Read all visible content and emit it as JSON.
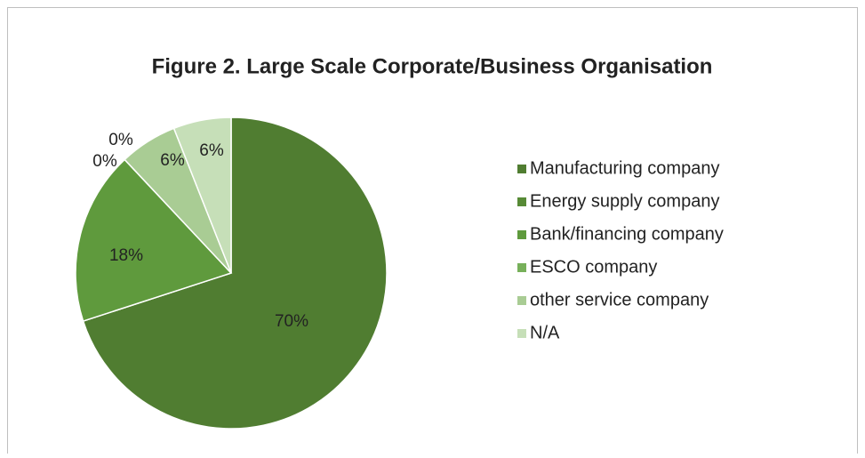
{
  "chart_data": {
    "type": "pie",
    "title": "Figure 2. Large Scale Corporate/Business Organisation",
    "categories": [
      "Manufacturing  company",
      "Energy supply company",
      "Bank/financing company",
      "ESCO company",
      "other service company",
      " N/A"
    ],
    "values": [
      70,
      0,
      18,
      0,
      6,
      6
    ],
    "value_labels": [
      "70%",
      "0%",
      "18%",
      "0%",
      "6%",
      "6%"
    ],
    "colors": [
      "#507d31",
      "#578a36",
      "#5f9a3d",
      "#77b05a",
      "#a9cc94",
      "#c6dfb8"
    ],
    "legend": "right"
  }
}
